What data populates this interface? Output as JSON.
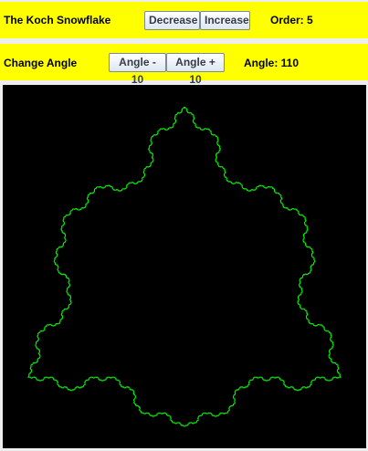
{
  "panel1": {
    "title": "The Koch Snowflake",
    "decrease_label": "Decrease",
    "increase_label": "Increase",
    "order_text": "Order: 5"
  },
  "panel2": {
    "label": "Change Angle",
    "angle_minus_label": "Angle - 10",
    "angle_plus_label": "Angle + 10",
    "angle_text": "Angle: 110"
  },
  "fractal": {
    "order": 5,
    "angle": 110,
    "line_color": "#00ff00",
    "background": "#000000"
  },
  "colors": {
    "panel_bg": "#ffff00",
    "window_bg": "#eeeeee"
  }
}
